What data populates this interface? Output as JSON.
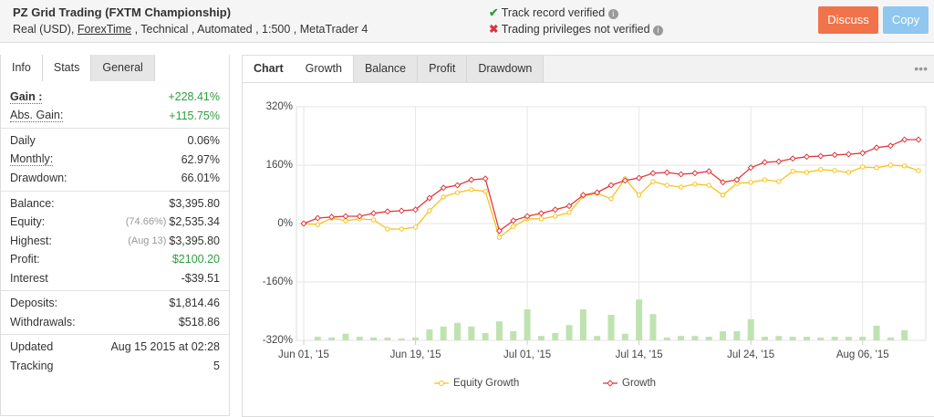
{
  "header": {
    "title": "PZ Grid Trading (FXTM Championship)",
    "subtitle": [
      "Real (USD), ",
      "ForexTime",
      " , Technical , Automated , 1:500 , MetaTrader 4"
    ],
    "verified": "Track record verified",
    "not_verified": "Trading privileges not verified",
    "buttons": [
      "Discuss",
      "Copy"
    ]
  },
  "left_tabs": [
    "Info",
    "Stats",
    "General"
  ],
  "stats": [
    [
      {
        "label": "Gain :",
        "value": "+228.41%",
        "color": "#2e9e3e"
      },
      {
        "label": "Abs. Gain:",
        "value": "+115.75%",
        "color": "#2e9e3e"
      }
    ],
    [
      {
        "label": "Daily",
        "value": "0.06%"
      },
      {
        "label": "Monthly:",
        "value": "62.97%"
      },
      {
        "label": "Drawdown:",
        "value": "66.01%"
      }
    ],
    [
      {
        "label": "Balance:",
        "value": "$3,395.80"
      },
      {
        "label": "Equity:",
        "note": "(74.66%)",
        "value": "$2,535.34"
      },
      {
        "label": "Highest:",
        "note": "(Aug 13)",
        "value": "$3,395.80"
      },
      {
        "label": "Profit:",
        "value": "$2100.20",
        "color": "#2e9e3e"
      },
      {
        "label": "Interest",
        "value": "-$39.51"
      }
    ],
    [
      {
        "label": "Deposits:",
        "value": "$1,814.46"
      },
      {
        "label": "Withdrawals:",
        "value": "$518.86"
      }
    ],
    [
      {
        "label": "Updated",
        "value": "Aug 15 2015 at 02:28"
      },
      {
        "label": "Tracking",
        "value": "5"
      }
    ]
  ],
  "chart_tabs": [
    "Chart",
    "Growth",
    "Balance",
    "Profit",
    "Drawdown"
  ],
  "chart_data": {
    "type": "line",
    "categories": [
      "Jun 01, '15",
      null,
      null,
      null,
      null,
      null,
      null,
      null,
      "Jun 19, '15",
      null,
      null,
      null,
      null,
      null,
      null,
      null,
      "Jul 01, '15",
      null,
      null,
      null,
      null,
      null,
      null,
      null,
      "Jul 14, '15",
      null,
      null,
      null,
      null,
      null,
      null,
      null,
      "Jul 24, '15",
      null,
      null,
      null,
      null,
      null,
      null,
      null,
      "Aug 06, '15",
      null,
      null,
      null,
      null
    ],
    "series": [
      {
        "name": "Equity Growth",
        "color": "#f7c21b",
        "values": [
          0,
          -3,
          15,
          8,
          13,
          10,
          -15,
          -15,
          -10,
          35,
          73,
          85,
          93,
          88,
          -38,
          -8,
          13,
          13,
          20,
          30,
          75,
          83,
          68,
          123,
          78,
          115,
          105,
          100,
          108,
          105,
          78,
          110,
          113,
          120,
          115,
          143,
          140,
          148,
          145,
          140,
          155,
          153,
          160,
          158,
          145
        ]
      },
      {
        "name": "Growth",
        "color": "#e0393e",
        "values": [
          0,
          15,
          18,
          20,
          20,
          28,
          33,
          35,
          38,
          70,
          98,
          105,
          120,
          123,
          -20,
          8,
          20,
          28,
          38,
          48,
          78,
          85,
          105,
          118,
          125,
          138,
          140,
          135,
          138,
          143,
          113,
          120,
          153,
          168,
          170,
          178,
          183,
          185,
          188,
          190,
          193,
          208,
          213,
          230,
          230
        ]
      }
    ],
    "bars": {
      "color": "#bfe3b0",
      "values": [
        null,
        -310,
        -312,
        -302,
        -310,
        -312,
        -312,
        -315,
        -312,
        -290,
        -282,
        -272,
        -282,
        -300,
        -268,
        -295,
        -235,
        -308,
        -300,
        -278,
        -235,
        -308,
        -250,
        -302,
        -208,
        -248,
        -312,
        -308,
        -308,
        -310,
        -295,
        -295,
        -262,
        -310,
        -308,
        -310,
        -310,
        -312,
        -310,
        -310,
        -310,
        -280,
        -312,
        -292,
        null
      ]
    },
    "ylim": [
      -320,
      320
    ],
    "yticks": [
      {
        "value": -320,
        "label": "-320%"
      },
      {
        "value": -160,
        "label": "-160%"
      },
      {
        "value": 0,
        "label": "0%"
      },
      {
        "value": 160,
        "label": "160%"
      },
      {
        "value": 320,
        "label": "320%"
      }
    ],
    "grid": true
  }
}
